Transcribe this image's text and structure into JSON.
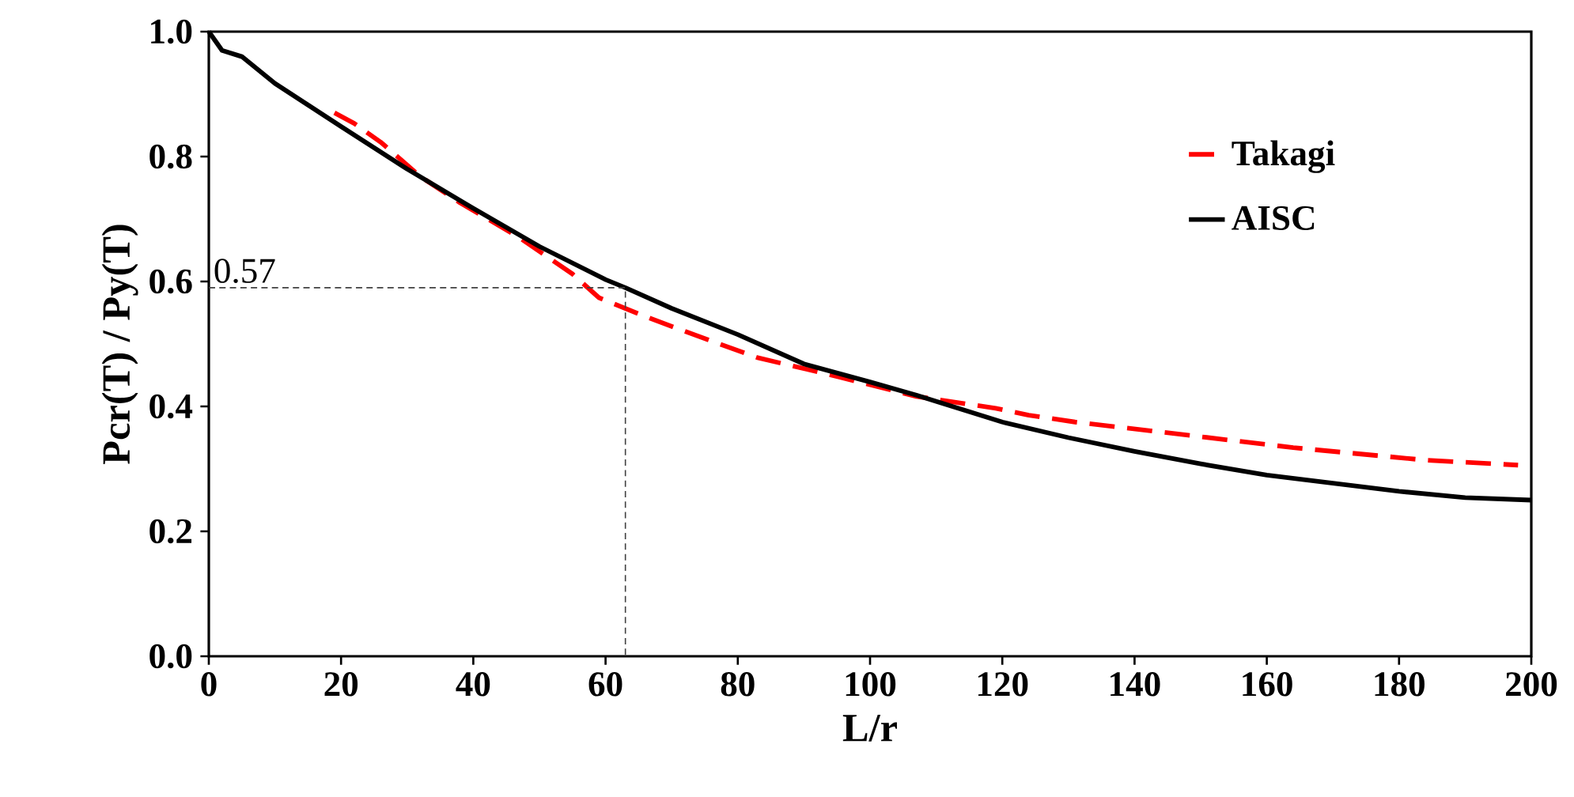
{
  "chart_data": {
    "type": "line",
    "xlabel": "L/r",
    "ylabel": "Pcr(T) / Py(T)",
    "xlim": [
      0,
      200
    ],
    "ylim": [
      0,
      1
    ],
    "xticks": [
      0,
      20,
      40,
      60,
      80,
      100,
      120,
      140,
      160,
      180,
      200
    ],
    "yticks": [
      {
        "value": 0,
        "label": "0.0"
      },
      {
        "value": 0.2,
        "label": "0.2"
      },
      {
        "value": 0.4,
        "label": "0.4"
      },
      {
        "value": 0.6,
        "label": "0.6"
      },
      {
        "value": 0.8,
        "label": "0.8"
      },
      {
        "value": 1,
        "label": "1.0"
      }
    ],
    "grid": false,
    "legend": "top right",
    "marker": "none",
    "series": [
      {
        "name": "Takagi",
        "color": "#ff0000",
        "line_style": "dashed",
        "x": [
          19,
          22,
          26,
          32,
          38,
          47,
          55,
          59,
          66,
          71,
          83,
          95,
          107,
          119,
          124,
          131,
          144,
          164,
          184,
          198
        ],
        "values": [
          0.87,
          0.853,
          0.823,
          0.768,
          0.726,
          0.67,
          0.612,
          0.574,
          0.544,
          0.524,
          0.478,
          0.448,
          0.416,
          0.397,
          0.386,
          0.375,
          0.359,
          0.334,
          0.314,
          0.306
        ]
      },
      {
        "name": "AISC",
        "color": "#000000",
        "line_style": "solid",
        "x": [
          0,
          2,
          5,
          10,
          20,
          30,
          40,
          50,
          60,
          63,
          70,
          80,
          90,
          100,
          107,
          120,
          130,
          140,
          150,
          160,
          170,
          180,
          190,
          200
        ],
        "values": [
          1.0,
          0.97,
          0.96,
          0.917,
          0.848,
          0.78,
          0.717,
          0.656,
          0.603,
          0.59,
          0.557,
          0.515,
          0.468,
          0.439,
          0.418,
          0.375,
          0.35,
          0.328,
          0.308,
          0.29,
          0.277,
          0.264,
          0.254,
          0.25
        ]
      },
      {
        "color": "#404040",
        "line_style": "dashed",
        "x": [
          0,
          63,
          63
        ],
        "values": [
          0.59,
          0.59,
          0
        ]
      }
    ],
    "annotations": [
      "0.57"
    ]
  }
}
